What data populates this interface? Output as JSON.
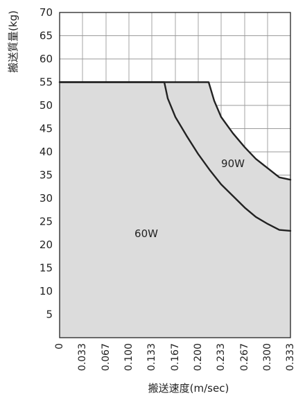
{
  "chart_data": {
    "type": "area",
    "xlabel": "搬送速度(m/sec)",
    "ylabel": "搬送質量(kg)",
    "xlim": [
      0,
      0.333
    ],
    "ylim": [
      0,
      70
    ],
    "grid": true,
    "x_ticks": [
      "0",
      "0.033",
      "0.067",
      "0.100",
      "0.133",
      "0.167",
      "0.200",
      "0.233",
      "0.267",
      "0.300",
      "0.333"
    ],
    "y_ticks": [
      "5",
      "10",
      "15",
      "20",
      "25",
      "30",
      "35",
      "40",
      "45",
      "50",
      "55",
      "60",
      "65",
      "70"
    ],
    "x_tick_values": [
      0,
      0.033,
      0.067,
      0.1,
      0.133,
      0.167,
      0.2,
      0.233,
      0.267,
      0.3,
      0.333
    ],
    "y_tick_values": [
      5,
      10,
      15,
      20,
      25,
      30,
      35,
      40,
      45,
      50,
      55,
      60,
      65,
      70
    ],
    "colors": {
      "fill": "#dcdcdc",
      "line": "#222222",
      "grid": "#9a9a9a"
    },
    "series": [
      {
        "name": "60W",
        "points": [
          [
            0,
            55
          ],
          [
            0.151,
            55
          ],
          [
            0.156,
            51.5
          ],
          [
            0.167,
            47.5
          ],
          [
            0.183,
            43.5
          ],
          [
            0.2,
            39.5
          ],
          [
            0.217,
            36
          ],
          [
            0.233,
            33
          ],
          [
            0.25,
            30.5
          ],
          [
            0.267,
            28
          ],
          [
            0.283,
            26
          ],
          [
            0.3,
            24.5
          ],
          [
            0.317,
            23.2
          ],
          [
            0.333,
            23
          ]
        ]
      },
      {
        "name": "90W",
        "points": [
          [
            0,
            55
          ],
          [
            0.215,
            55
          ],
          [
            0.223,
            51
          ],
          [
            0.233,
            47.5
          ],
          [
            0.25,
            44
          ],
          [
            0.267,
            41
          ],
          [
            0.283,
            38.5
          ],
          [
            0.3,
            36.5
          ],
          [
            0.317,
            34.5
          ],
          [
            0.333,
            34
          ]
        ]
      }
    ]
  }
}
